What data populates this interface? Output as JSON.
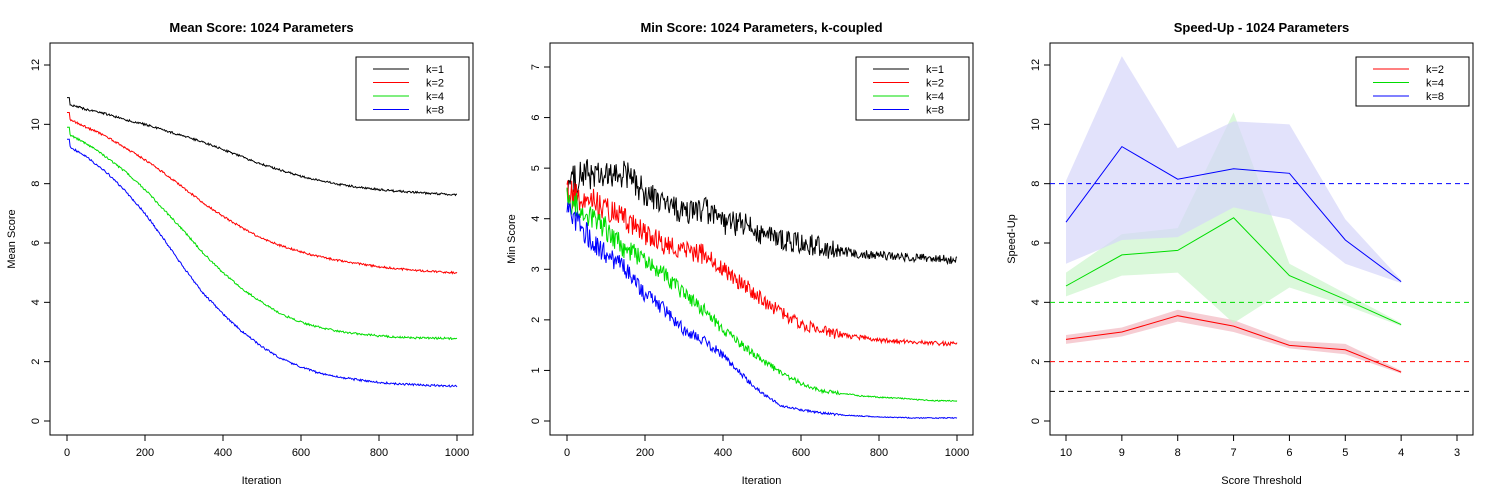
{
  "chart_data": [
    {
      "type": "line",
      "title": "Mean Score: 1024 Parameters",
      "xlabel": "Iteration",
      "ylabel": "Mean Score",
      "xlim": [
        0,
        1000
      ],
      "ylim": [
        0,
        12
      ],
      "xticks": [
        "0",
        "200",
        "400",
        "600",
        "800",
        "1000"
      ],
      "yticks": [
        "0",
        "2",
        "4",
        "6",
        "8",
        "10",
        "12"
      ],
      "legend_position": "top-right",
      "x": [
        0,
        50,
        100,
        150,
        200,
        250,
        300,
        350,
        400,
        450,
        500,
        550,
        600,
        650,
        700,
        750,
        800,
        850,
        900,
        950,
        1000
      ],
      "series": [
        {
          "name": "k=1",
          "color": "#000000",
          "values": [
            10.7,
            10.5,
            10.35,
            10.15,
            10.0,
            9.8,
            9.6,
            9.4,
            9.15,
            8.9,
            8.65,
            8.45,
            8.25,
            8.1,
            7.97,
            7.88,
            7.8,
            7.74,
            7.7,
            7.66,
            7.63
          ]
        },
        {
          "name": "k=2",
          "color": "#ff0000",
          "values": [
            10.2,
            9.9,
            9.6,
            9.2,
            8.8,
            8.35,
            7.85,
            7.35,
            6.9,
            6.5,
            6.15,
            5.9,
            5.7,
            5.53,
            5.4,
            5.3,
            5.2,
            5.13,
            5.07,
            5.03,
            5.0
          ]
        },
        {
          "name": "k=4",
          "color": "#00dd00",
          "values": [
            9.7,
            9.35,
            8.9,
            8.4,
            7.8,
            7.1,
            6.4,
            5.65,
            5.0,
            4.45,
            4.0,
            3.6,
            3.33,
            3.15,
            3.02,
            2.93,
            2.87,
            2.83,
            2.8,
            2.79,
            2.78
          ]
        },
        {
          "name": "k=8",
          "color": "#0000ff",
          "values": [
            9.3,
            8.9,
            8.4,
            7.75,
            7.0,
            6.1,
            5.15,
            4.3,
            3.6,
            3.0,
            2.5,
            2.1,
            1.82,
            1.6,
            1.47,
            1.38,
            1.3,
            1.25,
            1.22,
            1.19,
            1.17
          ]
        }
      ]
    },
    {
      "type": "line",
      "title": "Min Score: 1024 Parameters, k-coupled",
      "xlabel": "Iteration",
      "ylabel": "Min Score",
      "xlim": [
        0,
        1000
      ],
      "ylim": [
        0,
        7
      ],
      "xticks": [
        "0",
        "200",
        "400",
        "600",
        "800",
        "1000"
      ],
      "yticks": [
        "0",
        "1",
        "2",
        "3",
        "4",
        "5",
        "6",
        "7"
      ],
      "legend_position": "top-right",
      "x": [
        0,
        50,
        100,
        150,
        200,
        250,
        300,
        350,
        400,
        450,
        500,
        550,
        600,
        650,
        700,
        750,
        800,
        850,
        900,
        950,
        1000
      ],
      "series": [
        {
          "name": "k=1",
          "color": "#000000",
          "values": [
            4.7,
            4.9,
            4.8,
            4.9,
            4.5,
            4.3,
            4.1,
            4.2,
            3.9,
            3.9,
            3.7,
            3.6,
            3.5,
            3.45,
            3.35,
            3.3,
            3.28,
            3.25,
            3.22,
            3.2,
            3.18
          ]
        },
        {
          "name": "k=2",
          "color": "#ff0000",
          "values": [
            4.5,
            4.4,
            4.2,
            4.0,
            3.7,
            3.5,
            3.4,
            3.3,
            3.0,
            2.7,
            2.4,
            2.15,
            1.9,
            1.8,
            1.7,
            1.65,
            1.6,
            1.58,
            1.56,
            1.54,
            1.52
          ]
        },
        {
          "name": "k=4",
          "color": "#00dd00",
          "values": [
            4.4,
            4.1,
            3.8,
            3.4,
            3.2,
            2.9,
            2.5,
            2.2,
            1.8,
            1.5,
            1.2,
            0.95,
            0.75,
            0.6,
            0.55,
            0.5,
            0.47,
            0.45,
            0.42,
            0.4,
            0.4
          ]
        },
        {
          "name": "k=8",
          "color": "#0000ff",
          "values": [
            4.2,
            3.7,
            3.3,
            3.0,
            2.5,
            2.2,
            1.8,
            1.6,
            1.3,
            0.9,
            0.55,
            0.3,
            0.22,
            0.16,
            0.12,
            0.1,
            0.08,
            0.07,
            0.06,
            0.06,
            0.06
          ]
        }
      ]
    },
    {
      "type": "line",
      "title": "Speed-Up - 1024 Parameters",
      "xlabel": "Score Threshold",
      "ylabel": "Speed-Up",
      "xlim": [
        10,
        3
      ],
      "ylim": [
        0,
        12
      ],
      "xticks": [
        "10",
        "9",
        "8",
        "7",
        "6",
        "5",
        "4",
        "3"
      ],
      "yticks": [
        "0",
        "2",
        "4",
        "6",
        "8",
        "10",
        "12"
      ],
      "legend_position": "top-right",
      "x": [
        10,
        9,
        8,
        7,
        6,
        5,
        4
      ],
      "reference_lines": [
        {
          "y": 1,
          "color": "#000000"
        },
        {
          "y": 2,
          "color": "#ff0000"
        },
        {
          "y": 4,
          "color": "#00dd00"
        },
        {
          "y": 8,
          "color": "#0000ff"
        }
      ],
      "series": [
        {
          "name": "k=2",
          "color": "#ff0000",
          "band_color": "#f2b8c0",
          "values": [
            2.75,
            3.0,
            3.55,
            3.2,
            2.55,
            2.4,
            1.65
          ],
          "lower": [
            2.6,
            2.85,
            3.35,
            3.0,
            2.45,
            2.25,
            1.6
          ],
          "upper": [
            2.9,
            3.15,
            3.75,
            3.4,
            2.7,
            2.6,
            1.7
          ]
        },
        {
          "name": "k=4",
          "color": "#00dd00",
          "band_color": "#ccf5cc",
          "values": [
            4.55,
            5.6,
            5.75,
            6.85,
            4.9,
            4.1,
            3.25
          ],
          "lower": [
            4.2,
            4.9,
            5.0,
            3.3,
            4.5,
            3.9,
            3.2
          ],
          "upper": [
            5.0,
            6.3,
            6.5,
            10.4,
            5.3,
            4.3,
            3.3
          ]
        },
        {
          "name": "k=8",
          "color": "#0000ff",
          "band_color": "#d6d6fa",
          "values": [
            6.7,
            9.25,
            8.15,
            8.5,
            8.35,
            6.1,
            4.7
          ],
          "lower": [
            5.3,
            6.1,
            6.2,
            7.2,
            6.8,
            5.3,
            4.65
          ],
          "upper": [
            8.1,
            12.3,
            9.2,
            10.1,
            10.0,
            6.8,
            4.75
          ]
        }
      ]
    }
  ]
}
